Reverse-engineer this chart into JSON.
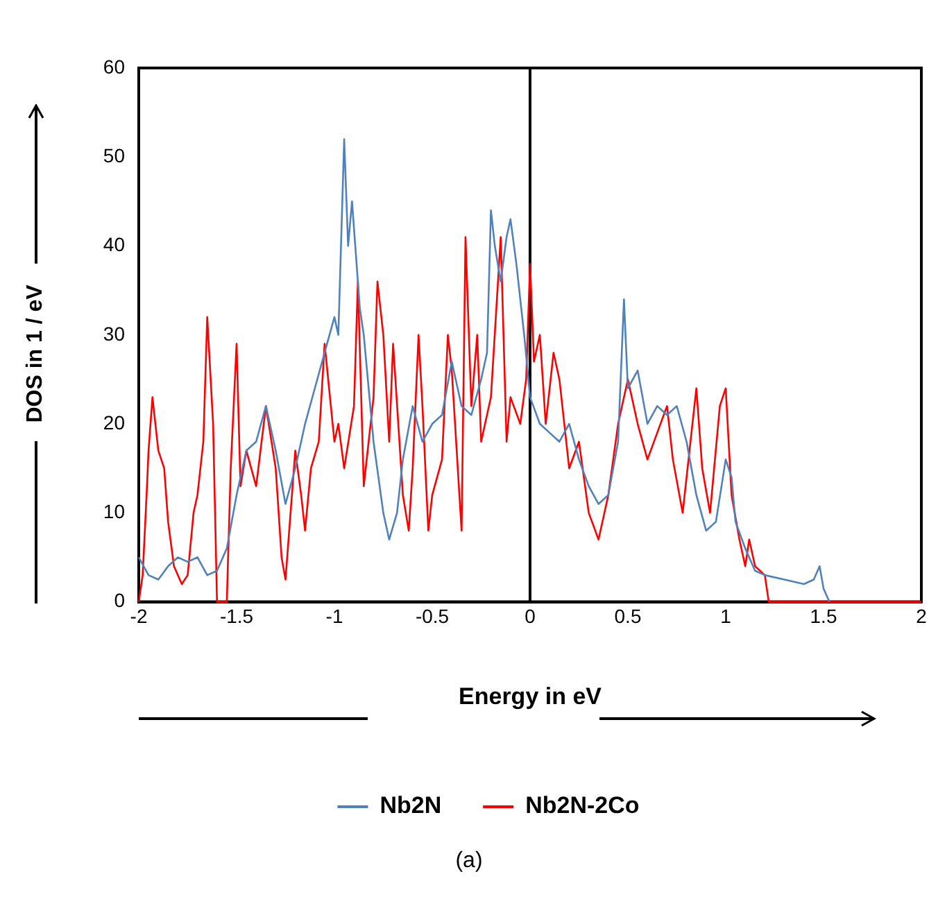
{
  "chart_data": {
    "type": "line",
    "xlabel": "Energy in eV",
    "ylabel": "DOS in 1 / eV",
    "xlim": [
      -2,
      2
    ],
    "xticks": [
      -2,
      -1.5,
      -1,
      -0.5,
      0,
      0.5,
      1,
      1.5,
      2
    ],
    "ylim": [
      0,
      60
    ],
    "yticks": [
      0,
      10,
      20,
      30,
      40,
      50,
      60
    ],
    "grid": false,
    "legend": "bottom",
    "marker": "none",
    "ref_lines": [
      {
        "axis": "x",
        "value": 0,
        "color": "#000000"
      }
    ],
    "annotations": [
      "(a)"
    ],
    "series": [
      {
        "name": "Nb2N",
        "color": "#4f81bd",
        "x": [
          -2,
          -1.95,
          -1.9,
          -1.85,
          -1.8,
          -1.75,
          -1.7,
          -1.65,
          -1.6,
          -1.55,
          -1.5,
          -1.45,
          -1.4,
          -1.35,
          -1.3,
          -1.25,
          -1.2,
          -1.15,
          -1.1,
          -1.05,
          -1,
          -0.98,
          -0.95,
          -0.93,
          -0.91,
          -0.87,
          -0.85,
          -0.8,
          -0.75,
          -0.72,
          -0.68,
          -0.65,
          -0.6,
          -0.55,
          -0.5,
          -0.45,
          -0.4,
          -0.35,
          -0.3,
          -0.25,
          -0.22,
          -0.2,
          -0.18,
          -0.15,
          -0.12,
          -0.1,
          -0.07,
          -0.03,
          0,
          0.05,
          0.1,
          0.15,
          0.2,
          0.25,
          0.3,
          0.35,
          0.4,
          0.45,
          0.48,
          0.5,
          0.55,
          0.6,
          0.65,
          0.7,
          0.75,
          0.8,
          0.85,
          0.9,
          0.95,
          1,
          1.03,
          1.05,
          1.1,
          1.15,
          1.2,
          1.3,
          1.4,
          1.45,
          1.48,
          1.5,
          1.53
        ],
        "values": [
          5,
          3,
          2.5,
          4,
          5,
          4.5,
          5,
          3,
          3.5,
          6,
          12,
          17,
          18,
          22,
          17,
          11,
          15,
          20,
          24,
          28,
          32,
          30,
          52,
          40,
          45,
          33,
          30,
          18,
          10,
          7,
          10,
          16,
          22,
          18,
          20,
          21,
          27,
          22,
          21,
          25,
          28,
          44,
          40,
          36,
          41,
          43,
          38,
          30,
          23,
          20,
          19,
          18,
          20,
          16,
          13,
          11,
          12,
          18,
          34,
          24,
          26,
          20,
          22,
          21,
          22,
          18,
          12,
          8,
          9,
          16,
          14,
          9,
          6,
          3.5,
          3,
          2.5,
          2,
          2.5,
          4,
          1.5,
          0
        ]
      },
      {
        "name": "Nb2N-2Co",
        "color": "#ff0000",
        "x": [
          -2,
          -1.98,
          -1.96,
          -1.95,
          -1.93,
          -1.9,
          -1.87,
          -1.85,
          -1.82,
          -1.78,
          -1.75,
          -1.72,
          -1.7,
          -1.67,
          -1.65,
          -1.62,
          -1.6,
          -1.55,
          -1.53,
          -1.5,
          -1.48,
          -1.45,
          -1.4,
          -1.35,
          -1.3,
          -1.27,
          -1.25,
          -1.2,
          -1.17,
          -1.15,
          -1.12,
          -1.08,
          -1.05,
          -1,
          -0.98,
          -0.95,
          -0.9,
          -0.88,
          -0.85,
          -0.8,
          -0.78,
          -0.75,
          -0.72,
          -0.7,
          -0.65,
          -0.62,
          -0.6,
          -0.57,
          -0.55,
          -0.52,
          -0.5,
          -0.45,
          -0.42,
          -0.4,
          -0.35,
          -0.33,
          -0.3,
          -0.27,
          -0.25,
          -0.2,
          -0.15,
          -0.12,
          -0.1,
          -0.05,
          -0.02,
          0,
          0.02,
          0.05,
          0.08,
          0.12,
          0.15,
          0.2,
          0.25,
          0.3,
          0.35,
          0.4,
          0.45,
          0.5,
          0.55,
          0.6,
          0.65,
          0.7,
          0.73,
          0.78,
          0.82,
          0.85,
          0.88,
          0.92,
          0.97,
          1,
          1.03,
          1.07,
          1.1,
          1.12,
          1.15,
          1.2,
          1.22,
          2
        ],
        "values": [
          0,
          3,
          12,
          17,
          23,
          17,
          15,
          9,
          4,
          2,
          3,
          10,
          12,
          18,
          32,
          20,
          0,
          0,
          15,
          29,
          13,
          17,
          13,
          22,
          15,
          5,
          2.5,
          17,
          12,
          8,
          15,
          18,
          29,
          18,
          20,
          15,
          22,
          36,
          13,
          23,
          36,
          30,
          18,
          29,
          12,
          8,
          15,
          30,
          22,
          8,
          12,
          16,
          30,
          26,
          8,
          41,
          22,
          30,
          18,
          23,
          41,
          18,
          23,
          20,
          25,
          38,
          27,
          30,
          20,
          28,
          25,
          15,
          18,
          10,
          7,
          12,
          20,
          25,
          20,
          16,
          19,
          22,
          16,
          10,
          18,
          24,
          15,
          10,
          22,
          24,
          12,
          7,
          4,
          7,
          4,
          3,
          0,
          0
        ]
      }
    ]
  }
}
